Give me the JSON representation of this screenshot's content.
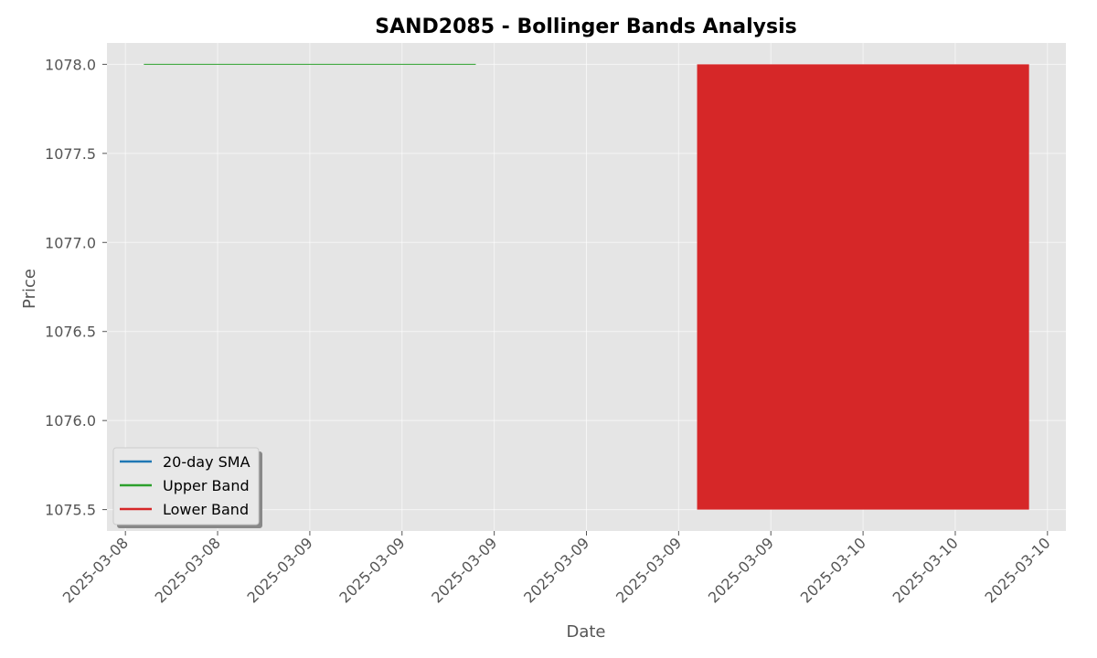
{
  "chart_data": {
    "type": "line",
    "title": "SAND2085 - Bollinger Bands Analysis",
    "xlabel": "Date",
    "ylabel": "Price",
    "ylim": [
      1075.38,
      1078.12
    ],
    "xlim": [
      -0.2,
      10.2
    ],
    "yticks": [
      1075.5,
      1076.0,
      1076.5,
      1077.0,
      1077.5,
      1078.0
    ],
    "ytick_labels": [
      "1075.5",
      "1076.0",
      "1076.5",
      "1077.0",
      "1077.5",
      "1078.0"
    ],
    "xtick_positions": [
      0,
      1,
      2,
      3,
      4,
      5,
      6,
      7,
      8,
      9,
      10
    ],
    "xtick_labels": [
      "2025-03-08",
      "2025-03-08",
      "2025-03-09",
      "2025-03-09",
      "2025-03-09",
      "2025-03-09",
      "2025-03-09",
      "2025-03-09",
      "2025-03-10",
      "2025-03-10",
      "2025-03-10"
    ],
    "grid": true,
    "legend_position": "lower-left",
    "series": [
      {
        "name": "20-day SMA",
        "color": "#1f77b4",
        "points": []
      },
      {
        "name": "Upper Band",
        "color": "#2ca02c",
        "points": [
          [
            0.2,
            1078.0
          ],
          [
            3.8,
            1078.0
          ]
        ]
      },
      {
        "name": "Lower Band",
        "color": "#d62728",
        "points": []
      }
    ],
    "band_fill": {
      "color": "#d62728",
      "x": [
        6.2,
        9.8
      ],
      "lower": 1075.5,
      "upper": 1078.0
    }
  }
}
